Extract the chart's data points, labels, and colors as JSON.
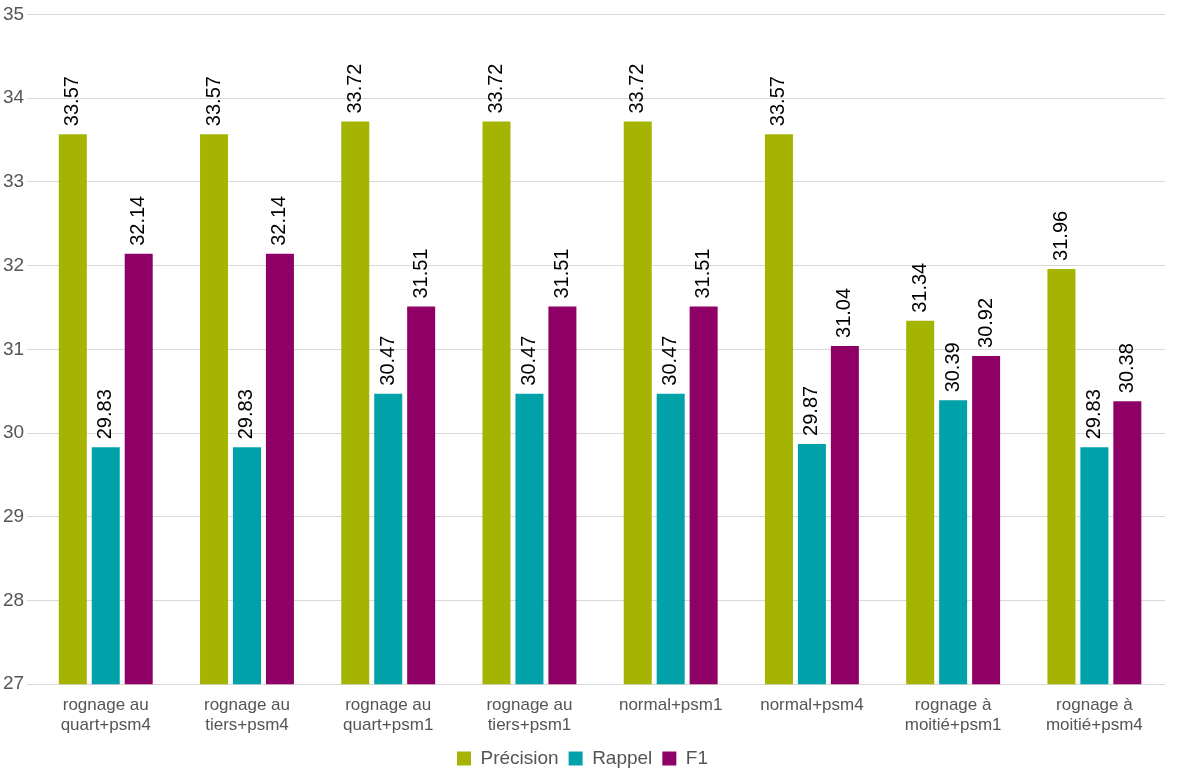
{
  "chart_data": {
    "type": "bar",
    "categories": [
      "rognage au quart+psm4",
      "rognage au tiers+psm4",
      "rognage au quart+psm1",
      "rognage au tiers+psm1",
      "normal+psm1",
      "normal+psm4",
      "rognage à moitié+psm1",
      "rognage à moitié+psm4"
    ],
    "series": [
      {
        "name": "Précision",
        "color": "#a5b400",
        "values": [
          33.57,
          33.57,
          33.72,
          33.72,
          33.72,
          33.57,
          31.34,
          31.96
        ]
      },
      {
        "name": "Rappel",
        "color": "#00a1a9",
        "values": [
          29.83,
          29.83,
          30.47,
          30.47,
          30.47,
          29.87,
          30.39,
          29.83
        ]
      },
      {
        "name": "F1",
        "color": "#8f0066",
        "values": [
          32.14,
          32.14,
          31.51,
          31.51,
          31.51,
          31.04,
          30.92,
          30.38
        ]
      }
    ],
    "ylim": [
      27,
      35
    ],
    "yticks": [
      27,
      28,
      29,
      30,
      31,
      32,
      33,
      34,
      35
    ],
    "grid": "y",
    "legend": "bottom",
    "data_labels": true
  }
}
